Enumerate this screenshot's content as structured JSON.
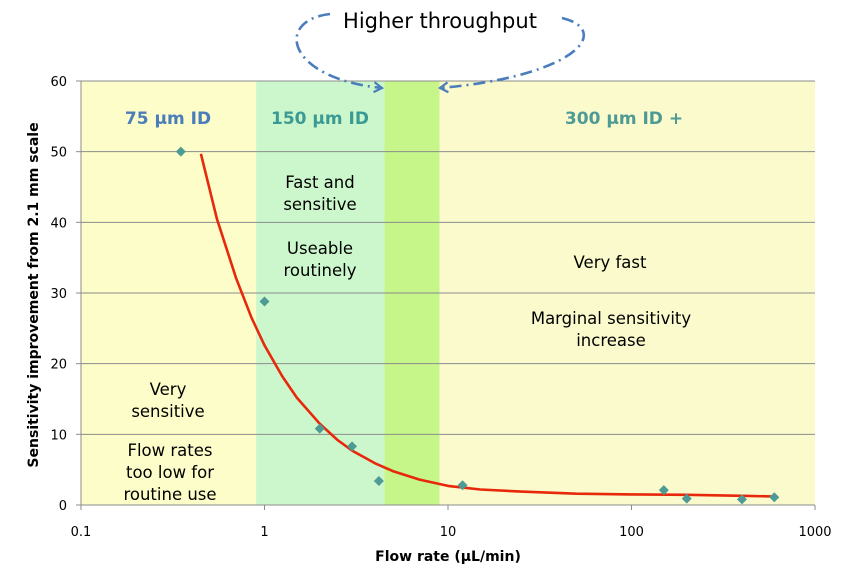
{
  "chart_data": {
    "type": "scatter",
    "title": "",
    "xlabel": "Flow rate (µL/min)",
    "ylabel": "Sensitivity  improvement  from 2.1 mm scale",
    "x_scale": "log",
    "xlim": [
      0.1,
      1000
    ],
    "ylim": [
      0,
      60
    ],
    "x_ticks": [
      0.1,
      1,
      10,
      100,
      1000
    ],
    "x_tick_labels": [
      "0.1",
      "1",
      "10",
      "100",
      "1000"
    ],
    "y_ticks": [
      0,
      10,
      20,
      30,
      40,
      50,
      60
    ],
    "y_tick_labels": [
      "0",
      "10",
      "20",
      "30",
      "40",
      "50",
      "60"
    ],
    "grid": "horizontal",
    "series": [
      {
        "points": [
          {
            "x": 0.35,
            "y": 50
          },
          {
            "x": 1.0,
            "y": 28.8
          },
          {
            "x": 2.0,
            "y": 10.8
          },
          {
            "x": 3.0,
            "y": 8.3
          },
          {
            "x": 4.2,
            "y": 3.4
          },
          {
            "x": 12,
            "y": 2.8
          },
          {
            "x": 150,
            "y": 2.1
          },
          {
            "x": 200,
            "y": 0.9
          },
          {
            "x": 400,
            "y": 0.8
          },
          {
            "x": 600,
            "y": 1.1
          }
        ],
        "color": "#4e9a95",
        "marker": "diamond"
      },
      {
        "type": "line",
        "points": [
          {
            "x": 0.45,
            "y": 49.7
          },
          {
            "x": 0.55,
            "y": 40.5
          },
          {
            "x": 0.7,
            "y": 32.1
          },
          {
            "x": 0.85,
            "y": 26.5
          },
          {
            "x": 1.0,
            "y": 22.6
          },
          {
            "x": 1.25,
            "y": 18.2
          },
          {
            "x": 1.5,
            "y": 15.2
          },
          {
            "x": 2.0,
            "y": 11.5
          },
          {
            "x": 2.5,
            "y": 9.2
          },
          {
            "x": 3.0,
            "y": 7.7
          },
          {
            "x": 4.0,
            "y": 5.9
          },
          {
            "x": 5.0,
            "y": 4.8
          },
          {
            "x": 7.0,
            "y": 3.6
          },
          {
            "x": 10,
            "y": 2.7
          },
          {
            "x": 15,
            "y": 2.2
          },
          {
            "x": 25,
            "y": 1.9
          },
          {
            "x": 50,
            "y": 1.6
          },
          {
            "x": 100,
            "y": 1.5
          },
          {
            "x": 200,
            "y": 1.45
          },
          {
            "x": 400,
            "y": 1.3
          },
          {
            "x": 600,
            "y": 1.2
          }
        ],
        "color": "#e8280a"
      }
    ],
    "regions": [
      {
        "x_range": [
          0.1,
          0.9
        ],
        "color": "#fdfdc9",
        "label": "75 µm ID",
        "label_color": "#4a7ebb",
        "annotations": [
          [
            "Very",
            "sensitive"
          ],
          [
            "Flow rates",
            "too low for",
            "routine use"
          ]
        ]
      },
      {
        "x_range": [
          0.9,
          4.5
        ],
        "color": "#ccf7cc",
        "label": "150 µm ID",
        "label_color": "#3c9a94",
        "annotations": [
          [
            "Fast and",
            "sensitive"
          ],
          [
            "Useable",
            "routinely"
          ]
        ]
      },
      {
        "x_range": [
          4.5,
          9.0
        ],
        "color": "#c6f58a",
        "label": "",
        "label_color": "",
        "annotations": []
      },
      {
        "x_range": [
          9.0,
          1000
        ],
        "color": "#fafacc",
        "label": "300 µm ID +",
        "label_color": "#4e9a95",
        "annotations": [
          [
            "Very fast"
          ],
          [
            "Marginal sensitivity",
            "increase"
          ]
        ]
      }
    ],
    "callout": {
      "text": "Higher throughput",
      "color": "#4a7ebb"
    }
  }
}
